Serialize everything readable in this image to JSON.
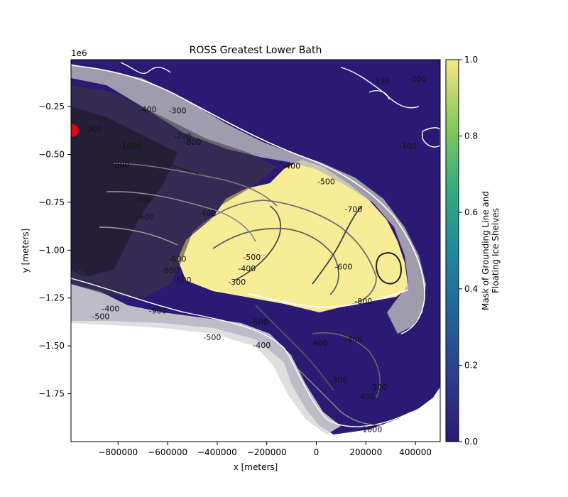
{
  "chart_data": {
    "type": "heatmap",
    "title": "ROSS Greatest Lower Bath",
    "xlabel": "x [meters]",
    "ylabel": "y [meters]",
    "y_offset_label": "1e6",
    "xlim": [
      -990000,
      500000
    ],
    "ylim": [
      -2000000,
      -5000
    ],
    "x_ticks": [
      -800000,
      -600000,
      -400000,
      -200000,
      0,
      200000,
      400000
    ],
    "x_tick_labels": [
      "−800000",
      "−600000",
      "−400000",
      "−200000",
      "0",
      "200000",
      "400000"
    ],
    "y_ticks": [
      -250000,
      -500000,
      -750000,
      -1000000,
      -1250000,
      -1500000,
      -1750000
    ],
    "y_tick_labels": [
      "−0.25",
      "−0.50",
      "−0.75",
      "−1.00",
      "−1.25",
      "−1.50",
      "−1.75"
    ],
    "colorbar": {
      "label_line1": "Mask of Grounding Line and",
      "label_line2": "Floating Ice Shelves",
      "range": [
        0,
        1
      ],
      "ticks": [
        0,
        0.2,
        0.4,
        0.6,
        0.8,
        1.0
      ],
      "tick_labels": [
        "0.0",
        "0.2",
        "0.4",
        "0.6",
        "0.8",
        "1.0"
      ],
      "colormap": [
        "#2a1a73",
        "#2d3d8f",
        "#22639b",
        "#1f8a9a",
        "#35ad7b",
        "#8bc95b",
        "#f7e788"
      ]
    },
    "mask_colors": {
      "ocean": "#2a1a73",
      "ice_shelf": "#f8ec96",
      "land": "#ffffff"
    },
    "contour_labels": [
      {
        "text": "-400",
        "x": -680000,
        "y": -280000
      },
      {
        "text": "-300",
        "x": -560000,
        "y": -285000
      },
      {
        "text": "-300",
        "x": -900000,
        "y": -380000
      },
      {
        "text": "-700",
        "x": -540000,
        "y": -420000
      },
      {
        "text": "-800",
        "x": -500000,
        "y": -450000
      },
      {
        "text": "-1000",
        "x": -750000,
        "y": -470000
      },
      {
        "text": "-800",
        "x": -790000,
        "y": -570000
      },
      {
        "text": "-900",
        "x": -700000,
        "y": -750000
      },
      {
        "text": "-600",
        "x": -690000,
        "y": -840000
      },
      {
        "text": "-400",
        "x": -440000,
        "y": -820000
      },
      {
        "text": "-600",
        "x": -560000,
        "y": -1060000
      },
      {
        "text": "-600",
        "x": -590000,
        "y": -1120000
      },
      {
        "text": "-500",
        "x": -260000,
        "y": -1050000
      },
      {
        "text": "-400",
        "x": -280000,
        "y": -1110000
      },
      {
        "text": "-500",
        "x": -540000,
        "y": -1170000
      },
      {
        "text": "-300",
        "x": -320000,
        "y": -1180000
      },
      {
        "text": "-600",
        "x": 110000,
        "y": -1100000
      },
      {
        "text": "-700",
        "x": 150000,
        "y": -800000
      },
      {
        "text": "-500",
        "x": 40000,
        "y": -655000
      },
      {
        "text": "-400",
        "x": -100000,
        "y": -575000
      },
      {
        "text": "-800",
        "x": 190000,
        "y": -1280000
      },
      {
        "text": "-500",
        "x": -230000,
        "y": -1390000
      },
      {
        "text": "-400",
        "x": 10000,
        "y": -1500000
      },
      {
        "text": "-400",
        "x": 150000,
        "y": -1480000
      },
      {
        "text": "-300",
        "x": 90000,
        "y": -1690000
      },
      {
        "text": "-400",
        "x": 200000,
        "y": -1780000
      },
      {
        "text": "-500",
        "x": 250000,
        "y": -1730000
      },
      {
        "text": "-400",
        "x": -220000,
        "y": -1510000
      },
      {
        "text": "-500",
        "x": -420000,
        "y": -1470000
      },
      {
        "text": "-400",
        "x": -830000,
        "y": -1320000
      },
      {
        "text": "-500",
        "x": -870000,
        "y": -1360000
      },
      {
        "text": "-900",
        "x": -640000,
        "y": -1330000
      },
      {
        "text": "-100",
        "x": 260000,
        "y": -130000
      },
      {
        "text": "-100",
        "x": 370000,
        "y": -470000
      },
      {
        "text": "-100",
        "x": 410000,
        "y": -120000
      },
      {
        "text": "-1000",
        "x": 220000,
        "y": -1950000
      }
    ],
    "marker": {
      "x": -985000,
      "y": -375000,
      "color": "#e8000b"
    }
  }
}
